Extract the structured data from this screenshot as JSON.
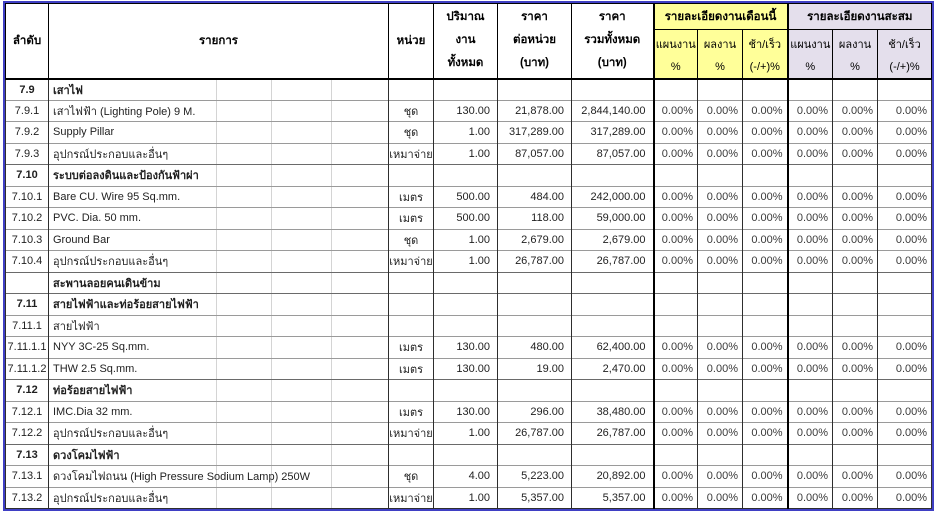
{
  "colors": {
    "month_group_bg": "#FFFF99",
    "cumulative_group_bg": "#E4DFEC",
    "frame_border": "#3F3FC4"
  },
  "table": {
    "header": {
      "no": "ลำดับ",
      "item": "รายการ",
      "unit": "หน่วย",
      "qty_lines": [
        "ปริมาณ",
        "งาน",
        "ทั้งหมด"
      ],
      "unit_price_lines": [
        "ราคา",
        "ต่อหน่วย",
        "(บาท)"
      ],
      "total_price_lines": [
        "ราคา",
        "รวมทั้งหมด",
        "(บาท)"
      ],
      "month_group": "รายละเอียดงานเดือนนี้",
      "cumulative_group": "รายละเอียดงานสะสม",
      "sub": [
        {
          "l1": "แผนงาน",
          "l2": "%"
        },
        {
          "l1": "ผลงาน",
          "l2": "%"
        },
        {
          "l1": "ช้า/เร็ว",
          "l2": "(-/+)%"
        },
        {
          "l1": "แผนงาน",
          "l2": "%"
        },
        {
          "l1": "ผลงาน",
          "l2": "%"
        },
        {
          "l1": "ช้า/เร็ว",
          "l2": "(-/+)%"
        }
      ]
    },
    "rows": [
      {
        "no": "7.9",
        "item": "เสาไฟ",
        "unit": "",
        "qty": "",
        "price": "",
        "total": "",
        "pct": [
          "",
          "",
          "",
          "",
          "",
          ""
        ],
        "section": true
      },
      {
        "no": "7.9.1",
        "item": "เสาไฟฟ้า (Lighting Pole) 9 M.",
        "unit": "ชุด",
        "qty": "130.00",
        "price": "21,878.00",
        "total": "2,844,140.00",
        "pct": [
          "0.00%",
          "0.00%",
          "0.00%",
          "0.00%",
          "0.00%",
          "0.00%"
        ],
        "section": false
      },
      {
        "no": "7.9.2",
        "item": "Supply Pillar",
        "unit": "ชุด",
        "qty": "1.00",
        "price": "317,289.00",
        "total": "317,289.00",
        "pct": [
          "0.00%",
          "0.00%",
          "0.00%",
          "0.00%",
          "0.00%",
          "0.00%"
        ],
        "section": false
      },
      {
        "no": "7.9.3",
        "item": "อุปกรณ์ประกอบและอื่นๆ",
        "unit": "เหมาจ่าย",
        "qty": "1.00",
        "price": "87,057.00",
        "total": "87,057.00",
        "pct": [
          "0.00%",
          "0.00%",
          "0.00%",
          "0.00%",
          "0.00%",
          "0.00%"
        ],
        "section": false
      },
      {
        "no": "7.10",
        "item": "ระบบต่อลงดินและป้องกันฟ้าผ่า",
        "unit": "",
        "qty": "",
        "price": "",
        "total": "",
        "pct": [
          "",
          "",
          "",
          "",
          "",
          ""
        ],
        "section": true
      },
      {
        "no": "7.10.1",
        "item": "Bare CU. Wire 95 Sq.mm.",
        "unit": "เมตร",
        "qty": "500.00",
        "price": "484.00",
        "total": "242,000.00",
        "pct": [
          "0.00%",
          "0.00%",
          "0.00%",
          "0.00%",
          "0.00%",
          "0.00%"
        ],
        "section": false
      },
      {
        "no": "7.10.2",
        "item": " PVC. Dia. 50 mm.",
        "unit": "เมตร",
        "qty": "500.00",
        "price": "118.00",
        "total": "59,000.00",
        "pct": [
          "0.00%",
          "0.00%",
          "0.00%",
          "0.00%",
          "0.00%",
          "0.00%"
        ],
        "section": false
      },
      {
        "no": "7.10.3",
        "item": "Ground Bar",
        "unit": "ชุด",
        "qty": "1.00",
        "price": "2,679.00",
        "total": "2,679.00",
        "pct": [
          "0.00%",
          "0.00%",
          "0.00%",
          "0.00%",
          "0.00%",
          "0.00%"
        ],
        "section": false
      },
      {
        "no": "7.10.4",
        "item": "อุปกรณ์ประกอบและอื่นๆ",
        "unit": "เหมาจ่าย",
        "qty": "1.00",
        "price": "26,787.00",
        "total": "26,787.00",
        "pct": [
          "0.00%",
          "0.00%",
          "0.00%",
          "0.00%",
          "0.00%",
          "0.00%"
        ],
        "section": false
      },
      {
        "no": "",
        "item": "สะพานลอยคนเดินข้าม",
        "unit": "",
        "qty": "",
        "price": "",
        "total": "",
        "pct": [
          "",
          "",
          "",
          "",
          "",
          ""
        ],
        "section": true
      },
      {
        "no": "7.11",
        "item": "สายไฟฟ้าและท่อร้อยสายไฟฟ้า",
        "unit": "",
        "qty": "",
        "price": "",
        "total": "",
        "pct": [
          "",
          "",
          "",
          "",
          "",
          ""
        ],
        "section": true
      },
      {
        "no": "7.11.1",
        "item": "สายไฟฟ้า",
        "unit": "",
        "qty": "",
        "price": "",
        "total": "",
        "pct": [
          "",
          "",
          "",
          "",
          "",
          ""
        ],
        "section": false
      },
      {
        "no": "7.11.1.1",
        "item": "NYY 3C-25 Sq.mm.",
        "unit": "เมตร",
        "qty": "130.00",
        "price": "480.00",
        "total": "62,400.00",
        "pct": [
          "0.00%",
          "0.00%",
          "0.00%",
          "0.00%",
          "0.00%",
          "0.00%"
        ],
        "section": false
      },
      {
        "no": "7.11.1.2",
        "item": "THW 2.5 Sq.mm.",
        "unit": "เมตร",
        "qty": "130.00",
        "price": "19.00",
        "total": "2,470.00",
        "pct": [
          "0.00%",
          "0.00%",
          "0.00%",
          "0.00%",
          "0.00%",
          "0.00%"
        ],
        "section": false
      },
      {
        "no": "7.12",
        "item": "ท่อร้อยสายไฟฟ้า",
        "unit": "",
        "qty": "",
        "price": "",
        "total": "",
        "pct": [
          "",
          "",
          "",
          "",
          "",
          ""
        ],
        "section": true
      },
      {
        "no": "7.12.1",
        "item": " IMC.Dia 32 mm.",
        "unit": "เมตร",
        "qty": "130.00",
        "price": "296.00",
        "total": "38,480.00",
        "pct": [
          "0.00%",
          "0.00%",
          "0.00%",
          "0.00%",
          "0.00%",
          "0.00%"
        ],
        "section": false
      },
      {
        "no": "7.12.2",
        "item": "อุปกรณ์ประกอบและอื่นๆ",
        "unit": "เหมาจ่าย",
        "qty": "1.00",
        "price": "26,787.00",
        "total": "26,787.00",
        "pct": [
          "0.00%",
          "0.00%",
          "0.00%",
          "0.00%",
          "0.00%",
          "0.00%"
        ],
        "section": false
      },
      {
        "no": "7.13",
        "item": "ดวงโคมไฟฟ้า",
        "unit": "",
        "qty": "",
        "price": "",
        "total": "",
        "pct": [
          "",
          "",
          "",
          "",
          "",
          ""
        ],
        "section": true
      },
      {
        "no": "7.13.1",
        "item": "ดวงโคมไฟถนน (High Pressure Sodium Lamp) 250W",
        "unit": "ชุด",
        "qty": "4.00",
        "price": "5,223.00",
        "total": "20,892.00",
        "pct": [
          "0.00%",
          "0.00%",
          "0.00%",
          "0.00%",
          "0.00%",
          "0.00%"
        ],
        "section": false
      },
      {
        "no": "7.13.2",
        "item": "อุปกรณ์ประกอบและอื่นๆ",
        "unit": "เหมาจ่าย",
        "qty": "1.00",
        "price": "5,357.00",
        "total": "5,357.00",
        "pct": [
          "0.00%",
          "0.00%",
          "0.00%",
          "0.00%",
          "0.00%",
          "0.00%"
        ],
        "section": false
      }
    ]
  }
}
